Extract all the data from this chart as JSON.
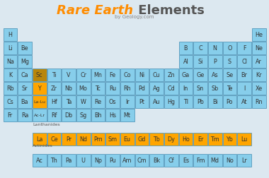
{
  "bg_color": "#dce8f0",
  "cell_blue": "#87CEEB",
  "cell_orange": "#FFA500",
  "cell_dark_orange": "#B8860B",
  "border_color": "#5599bb",
  "title_orange": "#FF8C00",
  "title_gray": "#555555",
  "subtitle_color": "#777777",
  "text_color": "#333333",
  "periodic_table": [
    {
      "symbol": "H",
      "row": 0,
      "col": 0
    },
    {
      "symbol": "He",
      "row": 0,
      "col": 17
    },
    {
      "symbol": "Li",
      "row": 1,
      "col": 0
    },
    {
      "symbol": "Be",
      "row": 1,
      "col": 1
    },
    {
      "symbol": "B",
      "row": 1,
      "col": 12
    },
    {
      "symbol": "C",
      "row": 1,
      "col": 13
    },
    {
      "symbol": "N",
      "row": 1,
      "col": 14
    },
    {
      "symbol": "O",
      "row": 1,
      "col": 15
    },
    {
      "symbol": "F",
      "row": 1,
      "col": 16
    },
    {
      "symbol": "Ne",
      "row": 1,
      "col": 17
    },
    {
      "symbol": "Na",
      "row": 2,
      "col": 0
    },
    {
      "symbol": "Mg",
      "row": 2,
      "col": 1
    },
    {
      "symbol": "Al",
      "row": 2,
      "col": 12
    },
    {
      "symbol": "Si",
      "row": 2,
      "col": 13
    },
    {
      "symbol": "P",
      "row": 2,
      "col": 14
    },
    {
      "symbol": "S",
      "row": 2,
      "col": 15
    },
    {
      "symbol": "Cl",
      "row": 2,
      "col": 16
    },
    {
      "symbol": "Ar",
      "row": 2,
      "col": 17
    },
    {
      "symbol": "K",
      "row": 3,
      "col": 0
    },
    {
      "symbol": "Ca",
      "row": 3,
      "col": 1
    },
    {
      "symbol": "Sc",
      "row": 3,
      "col": 2,
      "color": "dark_orange"
    },
    {
      "symbol": "Ti",
      "row": 3,
      "col": 3
    },
    {
      "symbol": "V",
      "row": 3,
      "col": 4
    },
    {
      "symbol": "Cr",
      "row": 3,
      "col": 5
    },
    {
      "symbol": "Mn",
      "row": 3,
      "col": 6
    },
    {
      "symbol": "Fe",
      "row": 3,
      "col": 7
    },
    {
      "symbol": "Co",
      "row": 3,
      "col": 8
    },
    {
      "symbol": "Ni",
      "row": 3,
      "col": 9
    },
    {
      "symbol": "Cu",
      "row": 3,
      "col": 10
    },
    {
      "symbol": "Zn",
      "row": 3,
      "col": 11
    },
    {
      "symbol": "Ga",
      "row": 3,
      "col": 12
    },
    {
      "symbol": "Ge",
      "row": 3,
      "col": 13
    },
    {
      "symbol": "As",
      "row": 3,
      "col": 14
    },
    {
      "symbol": "Se",
      "row": 3,
      "col": 15
    },
    {
      "symbol": "Br",
      "row": 3,
      "col": 16
    },
    {
      "symbol": "Kr",
      "row": 3,
      "col": 17
    },
    {
      "symbol": "Rb",
      "row": 4,
      "col": 0
    },
    {
      "symbol": "Sr",
      "row": 4,
      "col": 1
    },
    {
      "symbol": "Y",
      "row": 4,
      "col": 2,
      "color": "orange"
    },
    {
      "symbol": "Zr",
      "row": 4,
      "col": 3
    },
    {
      "symbol": "Nb",
      "row": 4,
      "col": 4
    },
    {
      "symbol": "Mo",
      "row": 4,
      "col": 5
    },
    {
      "symbol": "Tc",
      "row": 4,
      "col": 6
    },
    {
      "symbol": "Ru",
      "row": 4,
      "col": 7
    },
    {
      "symbol": "Rh",
      "row": 4,
      "col": 8
    },
    {
      "symbol": "Pd",
      "row": 4,
      "col": 9
    },
    {
      "symbol": "Ag",
      "row": 4,
      "col": 10
    },
    {
      "symbol": "Cd",
      "row": 4,
      "col": 11
    },
    {
      "symbol": "In",
      "row": 4,
      "col": 12
    },
    {
      "symbol": "Sn",
      "row": 4,
      "col": 13
    },
    {
      "symbol": "Sb",
      "row": 4,
      "col": 14
    },
    {
      "symbol": "Te",
      "row": 4,
      "col": 15
    },
    {
      "symbol": "I",
      "row": 4,
      "col": 16
    },
    {
      "symbol": "Xe",
      "row": 4,
      "col": 17
    },
    {
      "symbol": "Cs",
      "row": 5,
      "col": 0
    },
    {
      "symbol": "Ba",
      "row": 5,
      "col": 1
    },
    {
      "symbol": "La-Lu",
      "row": 5,
      "col": 2,
      "color": "orange",
      "small": true
    },
    {
      "symbol": "Hf",
      "row": 5,
      "col": 3
    },
    {
      "symbol": "Ta",
      "row": 5,
      "col": 4
    },
    {
      "symbol": "W",
      "row": 5,
      "col": 5
    },
    {
      "symbol": "Re",
      "row": 5,
      "col": 6
    },
    {
      "symbol": "Os",
      "row": 5,
      "col": 7
    },
    {
      "symbol": "Ir",
      "row": 5,
      "col": 8
    },
    {
      "symbol": "Pt",
      "row": 5,
      "col": 9
    },
    {
      "symbol": "Au",
      "row": 5,
      "col": 10
    },
    {
      "symbol": "Hg",
      "row": 5,
      "col": 11
    },
    {
      "symbol": "Tl",
      "row": 5,
      "col": 12
    },
    {
      "symbol": "Pb",
      "row": 5,
      "col": 13
    },
    {
      "symbol": "Bi",
      "row": 5,
      "col": 14
    },
    {
      "symbol": "Po",
      "row": 5,
      "col": 15
    },
    {
      "symbol": "At",
      "row": 5,
      "col": 16
    },
    {
      "symbol": "Rn",
      "row": 5,
      "col": 17
    },
    {
      "symbol": "Fr",
      "row": 6,
      "col": 0
    },
    {
      "symbol": "Ra",
      "row": 6,
      "col": 1
    },
    {
      "symbol": "Ac-Lr",
      "row": 6,
      "col": 2,
      "color": "blue",
      "small": true
    },
    {
      "symbol": "Rf",
      "row": 6,
      "col": 3
    },
    {
      "symbol": "Db",
      "row": 6,
      "col": 4
    },
    {
      "symbol": "Sg",
      "row": 6,
      "col": 5
    },
    {
      "symbol": "Bh",
      "row": 6,
      "col": 6
    },
    {
      "symbol": "Hs",
      "row": 6,
      "col": 7
    },
    {
      "symbol": "Mt",
      "row": 6,
      "col": 8
    }
  ],
  "lanthanides": [
    "La",
    "Ce",
    "Pr",
    "Nd",
    "Pm",
    "Sm",
    "Eu",
    "Gd",
    "Tb",
    "Dy",
    "Ho",
    "Er",
    "Tm",
    "Yb",
    "Lu"
  ],
  "actinides": [
    "Ac",
    "Th",
    "Pa",
    "U",
    "Np",
    "Pu",
    "Am",
    "Cm",
    "Bk",
    "Cf",
    "Es",
    "Fm",
    "Md",
    "No",
    "Lr"
  ]
}
